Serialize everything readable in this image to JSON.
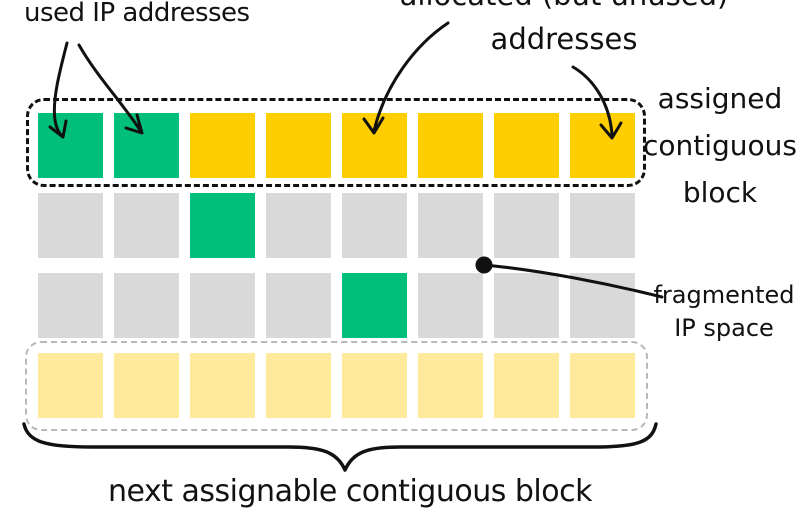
{
  "labels": {
    "used_ips": "used IP addresses",
    "allocated_line1": "allocated (but unused)",
    "allocated_line2": "addresses",
    "assigned_block_lines": [
      "assigned",
      "contiguous",
      "block"
    ],
    "fragmented_lines": [
      "fragmented",
      "IP space"
    ],
    "next_block": "next assignable contiguous block"
  },
  "colors": {
    "used": "#00bf7b",
    "allocated": "#ffce00",
    "unallocated": "#d9d9d9",
    "next_block": "#ffe99b",
    "stroke": "#111111",
    "next_block_outline": "#b8b8b8"
  },
  "grid": {
    "columns": 8,
    "rows": [
      {
        "name": "assigned-contiguous-block-row",
        "cells": [
          "used",
          "used",
          "allocated",
          "allocated",
          "allocated",
          "allocated",
          "allocated",
          "allocated"
        ]
      },
      {
        "name": "fragmented-row-1",
        "cells": [
          "unallocated",
          "unallocated",
          "used",
          "unallocated",
          "unallocated",
          "unallocated",
          "unallocated",
          "unallocated"
        ]
      },
      {
        "name": "fragmented-row-2",
        "cells": [
          "unallocated",
          "unallocated",
          "unallocated",
          "unallocated",
          "used",
          "unallocated",
          "unallocated",
          "unallocated"
        ]
      },
      {
        "name": "next-assignable-block-row",
        "cells": [
          "next_block",
          "next_block",
          "next_block",
          "next_block",
          "next_block",
          "next_block",
          "next_block",
          "next_block"
        ]
      }
    ]
  }
}
